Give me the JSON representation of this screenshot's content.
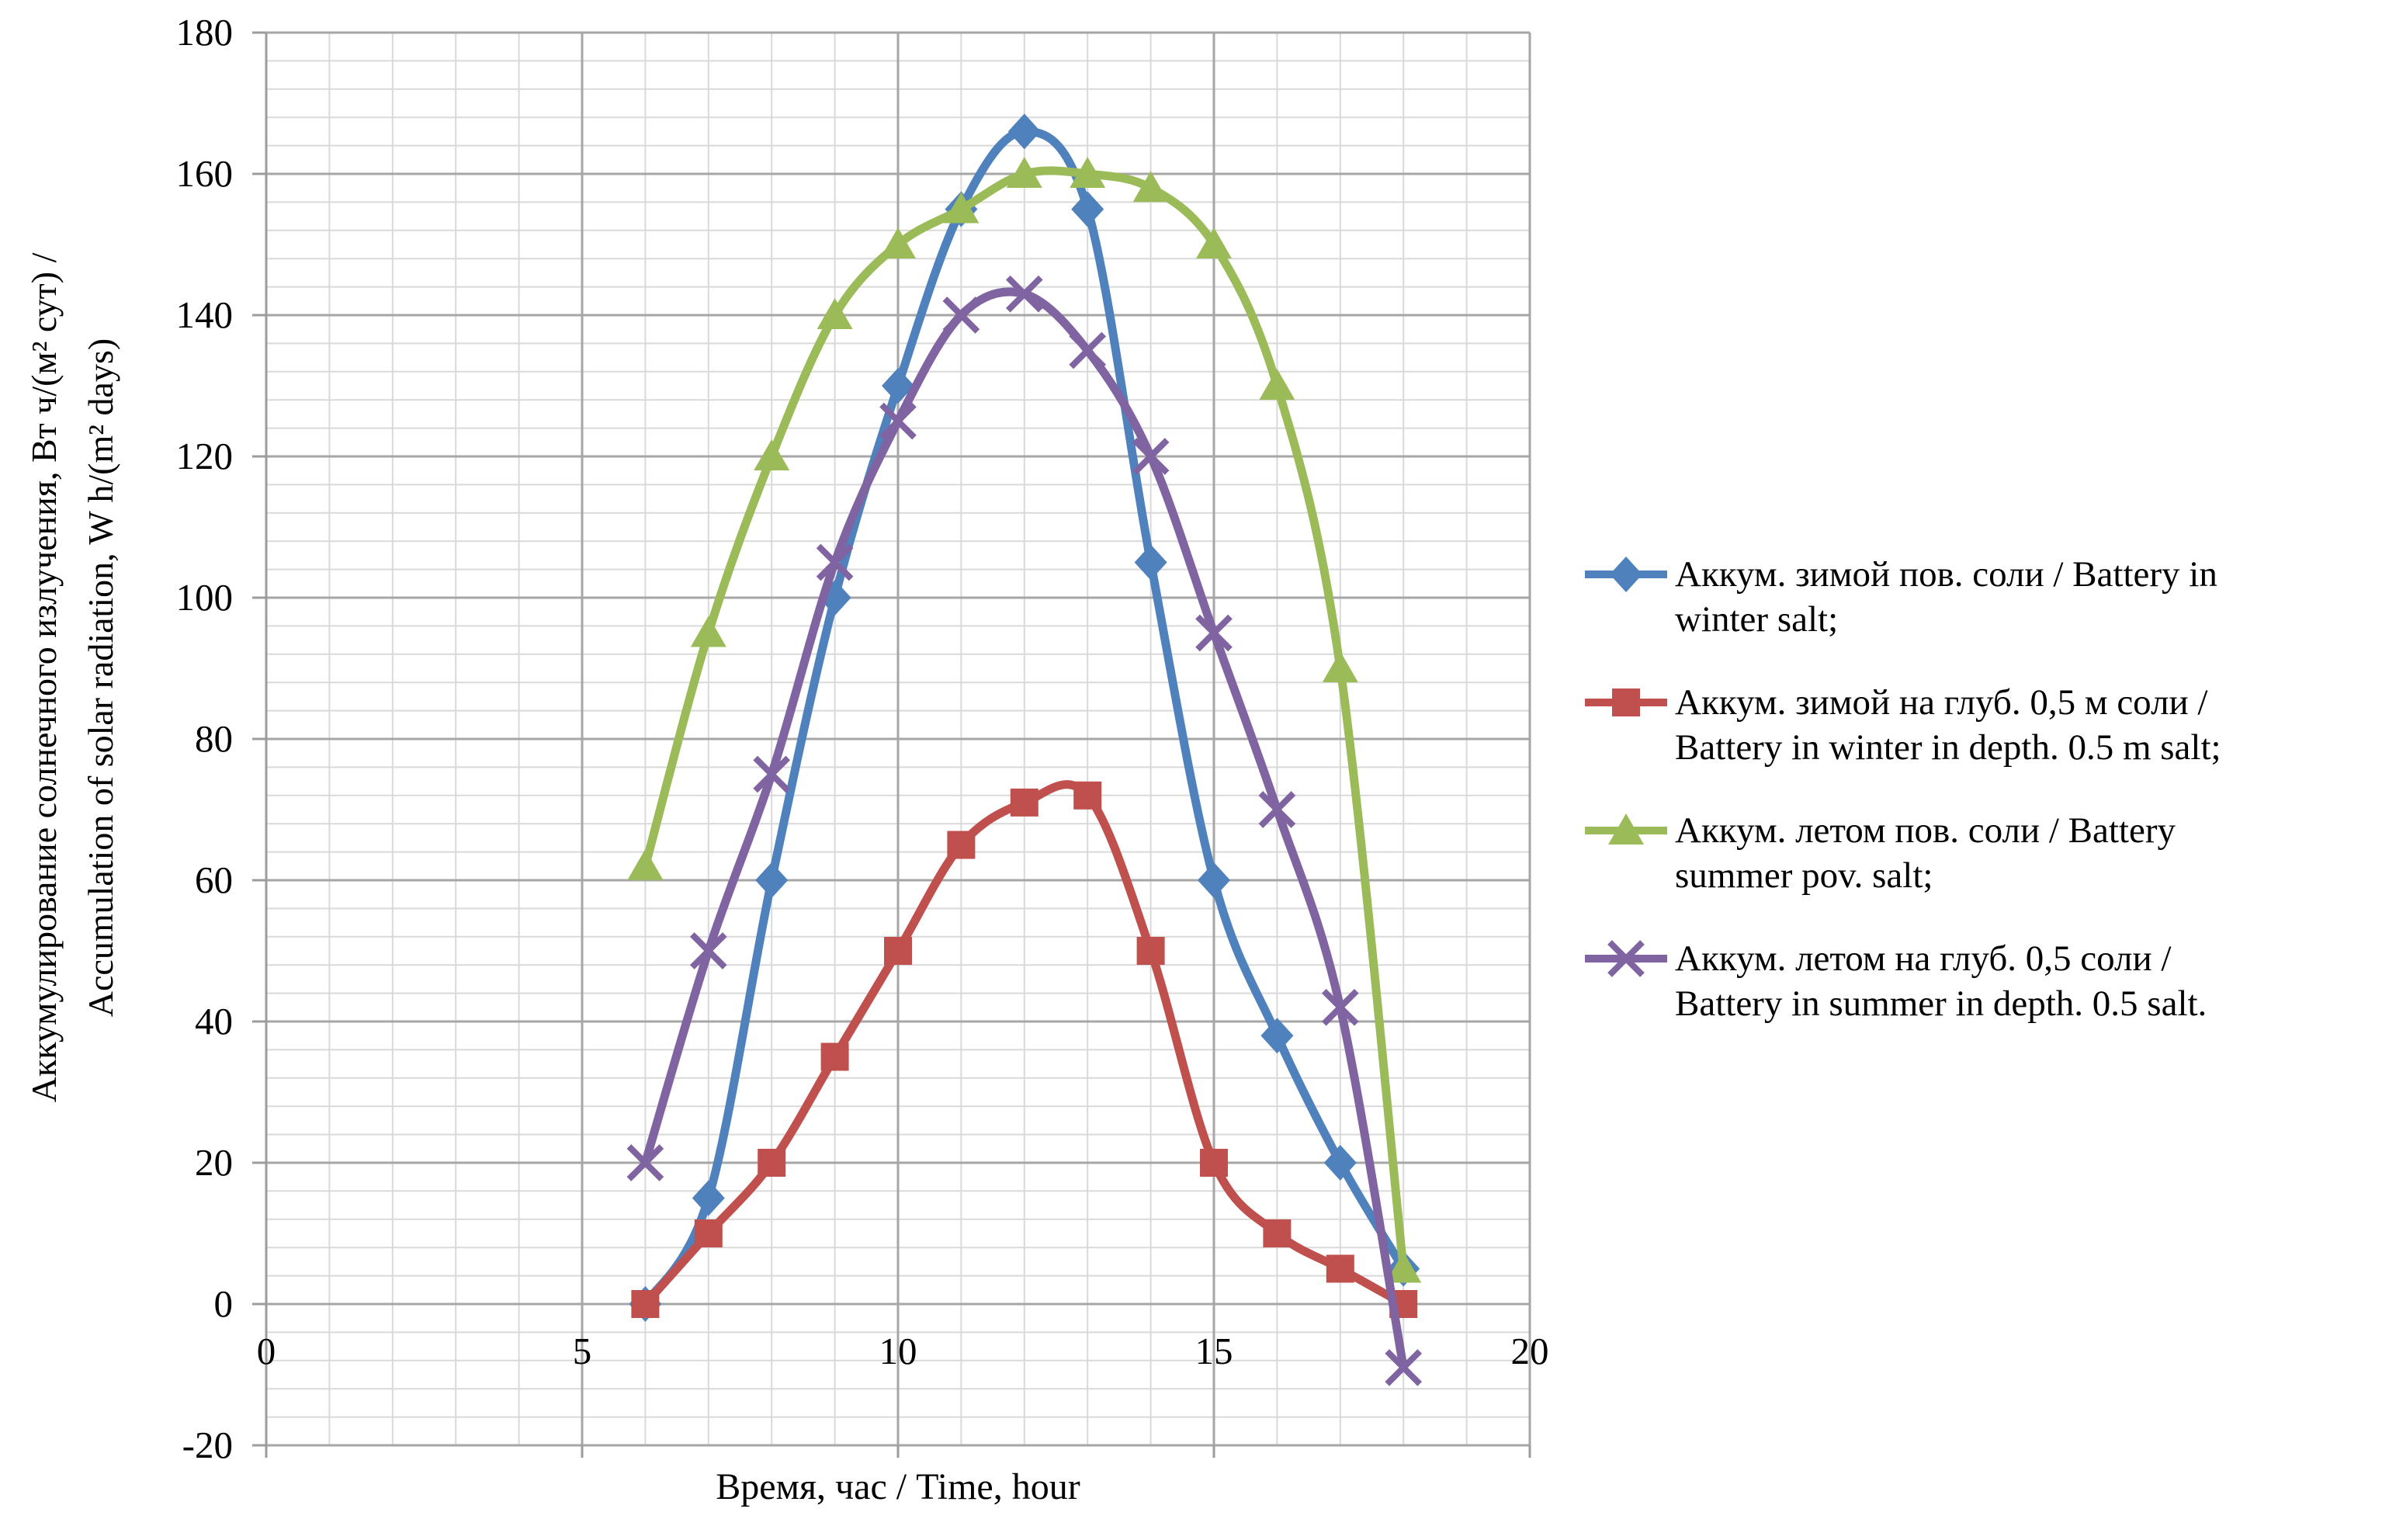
{
  "chart_data": {
    "type": "line",
    "title": "",
    "xlabel": "Время, час / Time, hour",
    "ylabel_lines": [
      "Аккумулирование солнечного излучения, Вт ч/(м² сут) /",
      "Accumulation of solar radiation, W h/(m² days)"
    ],
    "xlim": [
      0,
      20
    ],
    "ylim": [
      -20,
      180
    ],
    "x_minor_step": 1,
    "x_major_step": 5,
    "y_minor_step": 4,
    "y_major_step": 20,
    "grid": "both",
    "legend_position": "right",
    "x_tick_labels": [
      "0",
      "5",
      "10",
      "15",
      "20"
    ],
    "x_tick_values": [
      0,
      5,
      10,
      15,
      20
    ],
    "y_tick_labels": [
      "180",
      "160",
      "140",
      "120",
      "100",
      "80",
      "60",
      "40",
      "20",
      "0",
      "-20"
    ],
    "y_tick_values": [
      180,
      160,
      140,
      120,
      100,
      80,
      60,
      40,
      20,
      0,
      -20
    ],
    "x": [
      6,
      7,
      8,
      9,
      10,
      11,
      12,
      13,
      14,
      15,
      16,
      17,
      18
    ],
    "series": [
      {
        "name": "winter-surface-salt",
        "label": "Аккум. зимой пов. соли / Battery in winter salt;",
        "label_lines": [
          "Аккум. зимой пов. соли / Battery in",
          "winter salt;"
        ],
        "color": "#4F81BD",
        "marker": "diamond",
        "values": [
          0,
          15,
          60,
          100,
          130,
          155,
          166,
          155,
          105,
          60,
          38,
          20,
          5
        ]
      },
      {
        "name": "winter-depth-05m-salt",
        "label": "Аккум. зимой на глуб. 0,5 м соли / Battery in winter in depth. 0.5 m salt;",
        "label_lines": [
          "Аккум. зимой на глуб. 0,5 м соли /",
          "Battery in winter in depth. 0.5 m salt;"
        ],
        "color": "#C0504D",
        "marker": "square",
        "values": [
          0,
          10,
          20,
          35,
          50,
          65,
          71,
          72,
          50,
          20,
          10,
          5,
          0
        ]
      },
      {
        "name": "summer-surface-salt",
        "label": "Аккум. летом пов. соли / Battery summer pov. salt;",
        "label_lines": [
          "Аккум. летом пов. соли / Battery",
          "summer pov. salt;"
        ],
        "color": "#9BBB59",
        "marker": "triangle",
        "values": [
          62,
          95,
          120,
          140,
          150,
          155,
          160,
          160,
          158,
          150,
          130,
          90,
          5
        ]
      },
      {
        "name": "summer-depth-05-salt",
        "label": "Аккум. летом на глуб. 0,5 соли / Battery in summer in depth. 0.5 salt.",
        "label_lines": [
          "Аккум. летом на глуб. 0,5 соли /",
          "Battery in summer in depth. 0.5 salt."
        ],
        "color": "#8064A2",
        "marker": "x",
        "values": [
          20,
          50,
          75,
          105,
          125,
          140,
          143,
          135,
          120,
          95,
          70,
          42,
          -9
        ]
      }
    ],
    "grid_minor_color": "#D9D9D9",
    "grid_major_color": "#A6A6A6",
    "axis_color": "#9C9C9C"
  }
}
